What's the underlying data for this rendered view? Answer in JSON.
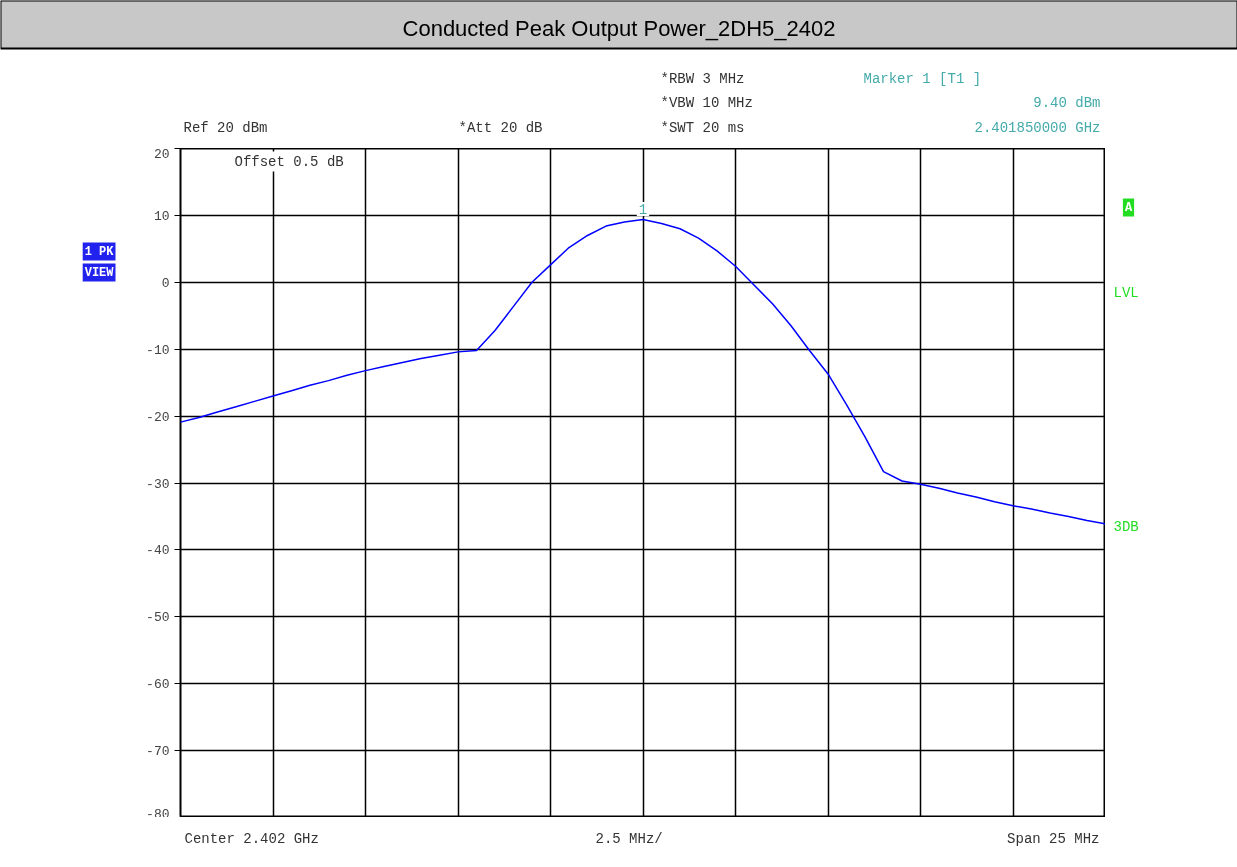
{
  "chart_data": {
    "type": "line",
    "title": "Conducted Peak Output Power_2DH5_2402",
    "annotations": [
      "Ref 20 dBm",
      "*Att 20 dB",
      "*RBW 3 MHz",
      "*VBW 10 MHz",
      "*SWT 20 ms",
      "Marker 1 [T1 ]",
      "9.40 dBm",
      "2.401850000 GHz",
      "Offset 0.5 dB",
      "1 PK",
      "VIEW",
      "A",
      "LVL",
      "3DB",
      "Center 2.402 GHz",
      "2.5 MHz/",
      "Span 25 MHz",
      {
        "text": "1",
        "y": 9.4
      }
    ],
    "categories": [
      null,
      null,
      null,
      null,
      null,
      null,
      null,
      null,
      null,
      null,
      null,
      null,
      null,
      null,
      null,
      null,
      null,
      null,
      null,
      null,
      null,
      null,
      null,
      null,
      null,
      null,
      null,
      null,
      null,
      null,
      null,
      null,
      null,
      null,
      null,
      null,
      null,
      null,
      null,
      null,
      null,
      null,
      null,
      null,
      null,
      null,
      null,
      null,
      null,
      null,
      null
    ],
    "series": [
      {
        "color": "#0000ff",
        "values": [
          -20.9,
          -20.2,
          -19.4,
          -18.6,
          -17.8,
          -17.0,
          -16.2,
          -15.4,
          -14.7,
          -13.9,
          -13.2,
          -12.6,
          -12.0,
          -11.4,
          -10.9,
          -10.4,
          -10.2,
          -7.2,
          -3.6,
          0.0,
          2.6,
          5.2,
          7.0,
          8.4,
          9.0,
          9.4,
          8.8,
          8.0,
          6.6,
          4.7,
          2.4,
          -0.4,
          -3.2,
          -6.5,
          -10.2,
          -13.7,
          -18.3,
          -23.1,
          -28.3,
          -29.7,
          -30.2,
          -30.8,
          -31.5,
          -32.1,
          -32.8,
          -33.4,
          -33.9,
          -34.5,
          -35.0,
          -35.6,
          -36.1
        ]
      }
    ],
    "ylim": [
      -80,
      20
    ],
    "yticks": [
      -80,
      -70,
      -60,
      -50,
      -40,
      -30,
      -20,
      -10,
      0,
      10,
      20
    ],
    "grid": true,
    "tick_labels": "y"
  }
}
